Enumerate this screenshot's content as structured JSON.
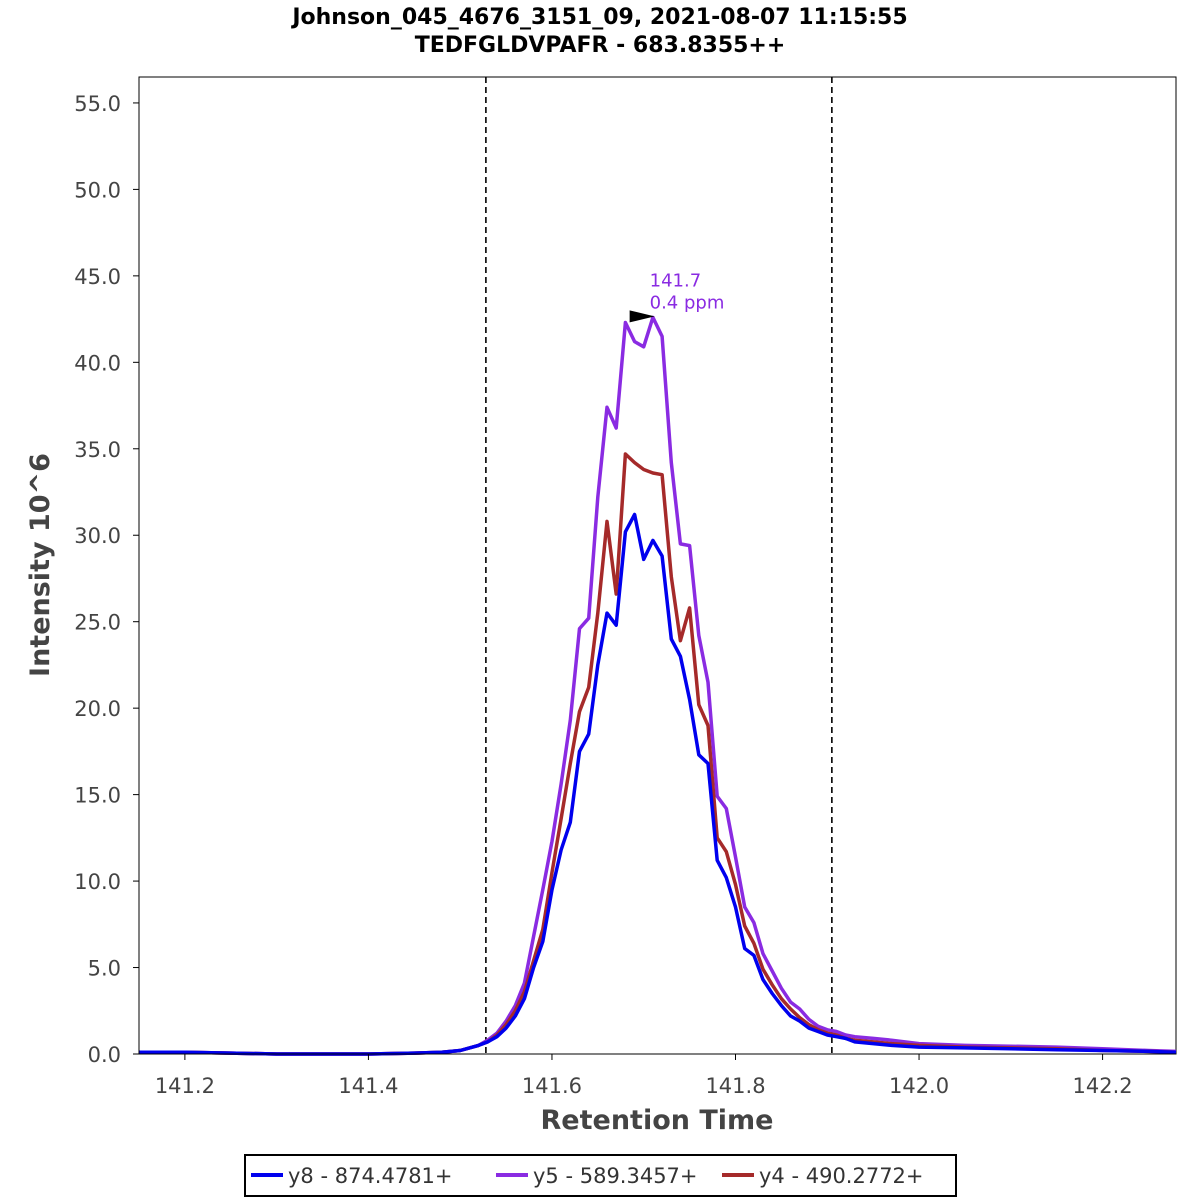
{
  "chart_data": {
    "type": "line",
    "title": "Johnson_045_4676_3151_09, 2021-08-07 11:15:55",
    "subtitle": "TEDFGLDVPAFR - 683.8355++",
    "xlabel": "Retention Time",
    "ylabel": "Intensity 10^6",
    "xlim": [
      141.15,
      142.28
    ],
    "ylim": [
      0,
      56.5
    ],
    "x_ticks": [
      141.2,
      141.4,
      141.6,
      141.8,
      142.0,
      142.2
    ],
    "x_tick_labels": [
      "141.2",
      "141.4",
      "141.6",
      "141.8",
      "142.0",
      "142.2"
    ],
    "y_ticks": [
      0,
      5,
      10,
      15,
      20,
      25,
      30,
      35,
      40,
      45,
      50,
      55
    ],
    "y_tick_labels": [
      "0.0",
      "5.0",
      "10.0",
      "15.0",
      "20.0",
      "25.0",
      "30.0",
      "35.0",
      "40.0",
      "45.0",
      "50.0",
      "55.0"
    ],
    "grid": false,
    "legend_position": "bottom",
    "boundaries": [
      141.528,
      141.905
    ],
    "annotation": {
      "x": 141.689,
      "y": 42.6,
      "line1": "141.7",
      "line2": "0.4 ppm",
      "color": "#8A2BE2"
    },
    "series": [
      {
        "name": "y8 - 874.4781+",
        "color": "#0000EE",
        "x": [
          141.15,
          141.2,
          141.25,
          141.3,
          141.35,
          141.4,
          141.45,
          141.48,
          141.5,
          141.52,
          141.53,
          141.54,
          141.55,
          141.56,
          141.57,
          141.58,
          141.59,
          141.6,
          141.61,
          141.62,
          141.63,
          141.64,
          141.65,
          141.66,
          141.67,
          141.68,
          141.69,
          141.7,
          141.71,
          141.72,
          141.73,
          141.74,
          141.75,
          141.76,
          141.77,
          141.78,
          141.79,
          141.8,
          141.81,
          141.82,
          141.83,
          141.84,
          141.85,
          141.86,
          141.87,
          141.88,
          141.89,
          141.9,
          141.91,
          141.92,
          141.93,
          141.95,
          141.97,
          142.0,
          142.05,
          142.1,
          142.15,
          142.2,
          142.25,
          142.28
        ],
        "y": [
          0.1,
          0.1,
          0.05,
          0.0,
          0.0,
          0.0,
          0.05,
          0.1,
          0.2,
          0.5,
          0.7,
          1.0,
          1.5,
          2.2,
          3.2,
          5.0,
          6.5,
          9.5,
          11.8,
          13.4,
          17.5,
          18.5,
          22.5,
          25.5,
          24.8,
          30.2,
          31.2,
          28.6,
          29.7,
          28.8,
          24.0,
          23.0,
          20.5,
          17.3,
          16.8,
          11.2,
          10.2,
          8.5,
          6.1,
          5.7,
          4.3,
          3.5,
          2.8,
          2.2,
          1.9,
          1.5,
          1.3,
          1.1,
          1.0,
          0.9,
          0.7,
          0.6,
          0.5,
          0.4,
          0.35,
          0.3,
          0.25,
          0.2,
          0.15,
          0.1
        ]
      },
      {
        "name": "y5 - 589.3457+",
        "color": "#8A2BE2",
        "x": [
          141.15,
          141.2,
          141.25,
          141.3,
          141.35,
          141.4,
          141.45,
          141.48,
          141.5,
          141.52,
          141.53,
          141.54,
          141.55,
          141.56,
          141.57,
          141.58,
          141.59,
          141.6,
          141.61,
          141.62,
          141.63,
          141.64,
          141.65,
          141.66,
          141.67,
          141.68,
          141.69,
          141.7,
          141.71,
          141.72,
          141.73,
          141.74,
          141.75,
          141.76,
          141.77,
          141.78,
          141.79,
          141.8,
          141.81,
          141.82,
          141.83,
          141.84,
          141.85,
          141.86,
          141.87,
          141.88,
          141.89,
          141.9,
          141.91,
          141.92,
          141.93,
          141.95,
          141.97,
          142.0,
          142.05,
          142.1,
          142.15,
          142.2,
          142.25,
          142.28
        ],
        "y": [
          0.1,
          0.1,
          0.05,
          0.0,
          0.0,
          0.0,
          0.05,
          0.1,
          0.2,
          0.5,
          0.8,
          1.2,
          1.9,
          2.8,
          4.1,
          6.8,
          9.5,
          12.3,
          15.6,
          19.3,
          24.6,
          25.2,
          32.2,
          37.4,
          36.2,
          42.3,
          41.2,
          40.9,
          42.6,
          41.5,
          34.2,
          29.5,
          29.4,
          24.2,
          21.5,
          14.9,
          14.2,
          11.4,
          8.5,
          7.6,
          5.8,
          4.8,
          3.8,
          3.0,
          2.6,
          2.0,
          1.6,
          1.4,
          1.3,
          1.1,
          1.0,
          0.9,
          0.8,
          0.6,
          0.5,
          0.45,
          0.4,
          0.3,
          0.2,
          0.15
        ]
      },
      {
        "name": "y4 - 490.2772+",
        "color": "#A52A2A",
        "x": [
          141.15,
          141.2,
          141.25,
          141.3,
          141.35,
          141.4,
          141.45,
          141.48,
          141.5,
          141.52,
          141.53,
          141.54,
          141.55,
          141.56,
          141.57,
          141.58,
          141.59,
          141.6,
          141.61,
          141.62,
          141.63,
          141.64,
          141.65,
          141.66,
          141.67,
          141.68,
          141.69,
          141.7,
          141.71,
          141.72,
          141.73,
          141.74,
          141.75,
          141.76,
          141.77,
          141.78,
          141.79,
          141.8,
          141.81,
          141.82,
          141.83,
          141.84,
          141.85,
          141.86,
          141.87,
          141.88,
          141.89,
          141.9,
          141.91,
          141.92,
          141.93,
          141.95,
          141.97,
          142.0,
          142.05,
          142.1,
          142.15,
          142.2,
          142.25,
          142.28
        ],
        "y": [
          0.1,
          0.1,
          0.05,
          0.0,
          0.0,
          0.0,
          0.05,
          0.1,
          0.2,
          0.5,
          0.7,
          1.1,
          1.7,
          2.5,
          3.6,
          5.4,
          7.2,
          10.5,
          13.6,
          16.8,
          19.8,
          21.2,
          25.5,
          30.8,
          26.6,
          34.7,
          34.2,
          33.8,
          33.6,
          33.5,
          27.6,
          23.9,
          25.8,
          20.2,
          19.0,
          12.5,
          11.7,
          9.8,
          7.4,
          6.4,
          4.9,
          4.0,
          3.2,
          2.6,
          2.1,
          1.7,
          1.4,
          1.2,
          1.1,
          0.9,
          0.8,
          0.7,
          0.6,
          0.5,
          0.4,
          0.35,
          0.3,
          0.2,
          0.15,
          0.1
        ]
      }
    ]
  }
}
